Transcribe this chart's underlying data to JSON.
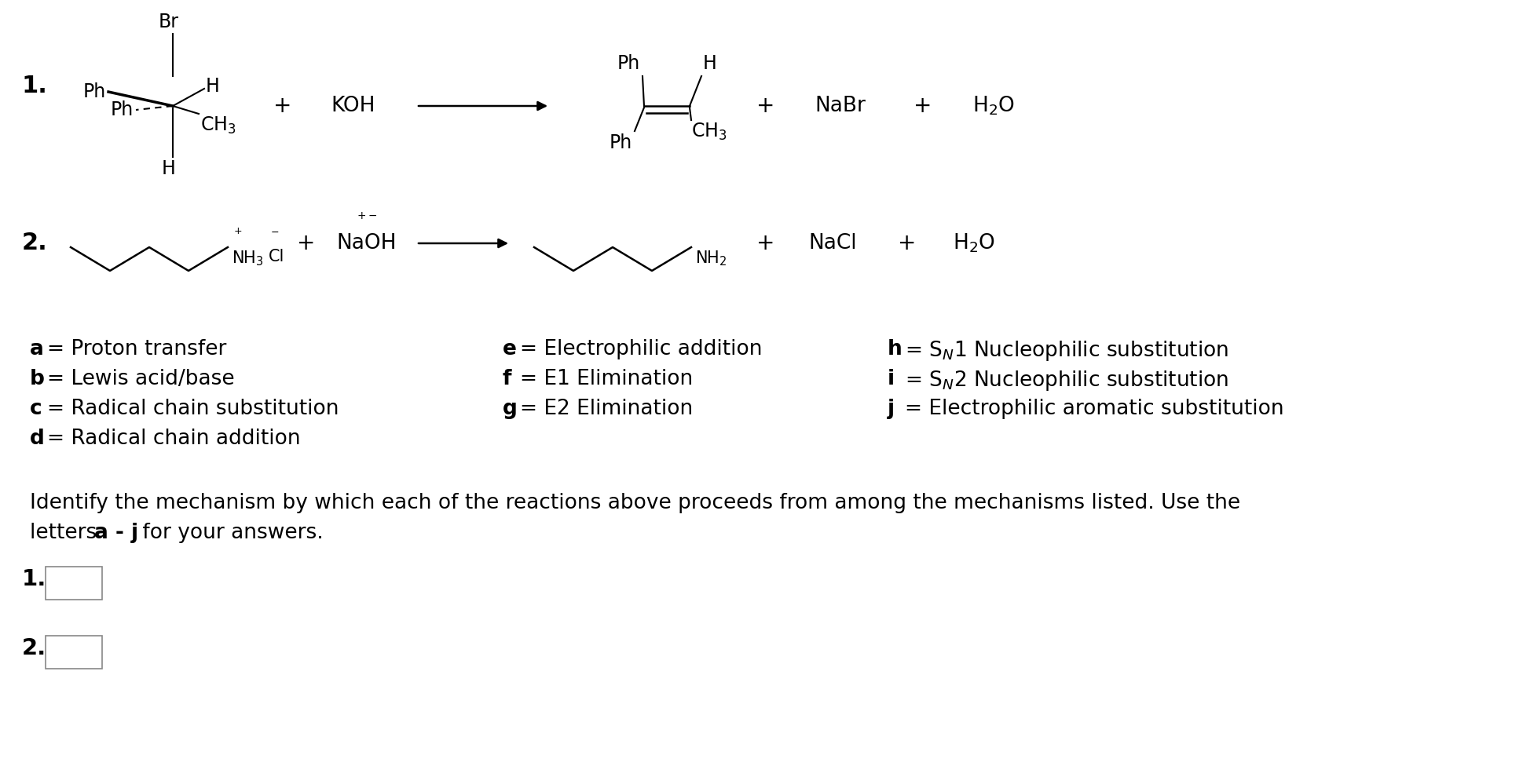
{
  "bg_color": "#ffffff",
  "figsize": [
    19.4,
    9.9
  ],
  "dpi": 100,
  "mechanisms": {
    "col1": [
      [
        "a",
        "Proton transfer"
      ],
      [
        "b",
        "Lewis acid/base"
      ],
      [
        "c",
        "Radical chain substitution"
      ],
      [
        "d",
        "Radical chain addition"
      ]
    ],
    "col2": [
      [
        "e",
        "Electrophilic addition"
      ],
      [
        "f",
        "E1 Elimination"
      ],
      [
        "g",
        "E2 Elimination"
      ]
    ],
    "col3": [
      [
        "h",
        "SN1 Nucleophilic substitution"
      ],
      [
        "i",
        "SN2 Nucleophilic substitution"
      ],
      [
        "j",
        "Electrophilic aromatic substitution"
      ]
    ]
  },
  "line1_identify": "Identify the mechanism by which each of the reactions above proceeds from among the mechanisms listed. Use the",
  "line2_identify_plain": "letters ",
  "line2_identify_bold": "a - j",
  "line2_identify_rest": " for your answers."
}
